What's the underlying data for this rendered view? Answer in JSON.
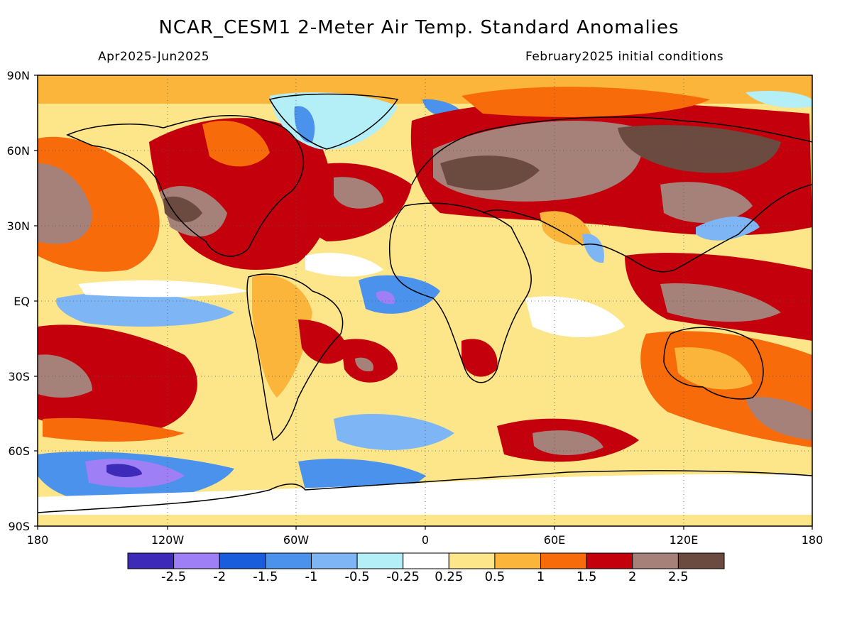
{
  "header": {
    "title": "NCAR_CESM1 2-Meter Air Temp. Standard Anomalies",
    "period": "Apr2025-Jun2025",
    "init": "February2025 initial conditions"
  },
  "axes": {
    "lat_labels": [
      "90N",
      "60N",
      "30N",
      "EQ",
      "30S",
      "60S",
      "90S"
    ],
    "lon_labels": [
      "180",
      "120W",
      "60W",
      "0",
      "60E",
      "120E",
      "180"
    ]
  },
  "colorbar": {
    "colors": [
      "#3d2ab8",
      "#9e7ff5",
      "#1a5ddc",
      "#4a92ec",
      "#7eb6f5",
      "#b4eef7",
      "#ffffff",
      "#fde58a",
      "#fbb53a",
      "#f76b0b",
      "#c3000c",
      "#a6817a",
      "#6b4a3f"
    ],
    "labels": [
      "-2.5",
      "-2",
      "-1.5",
      "-1",
      "-0.5",
      "-0.25",
      "0.25",
      "0.5",
      "1",
      "1.5",
      "2",
      "2.5"
    ]
  },
  "map": {
    "projection": "cylindrical equidistant",
    "lon_range": [
      -180,
      180
    ],
    "lat_range": [
      -90,
      90
    ],
    "gridlines": "dotted every 60° longitude and 30° latitude",
    "dominant_pattern": "warm anomalies over most land and northern oceans; cool anomalies in tropical Atlantic, southern Pacific and Southern Ocean"
  }
}
